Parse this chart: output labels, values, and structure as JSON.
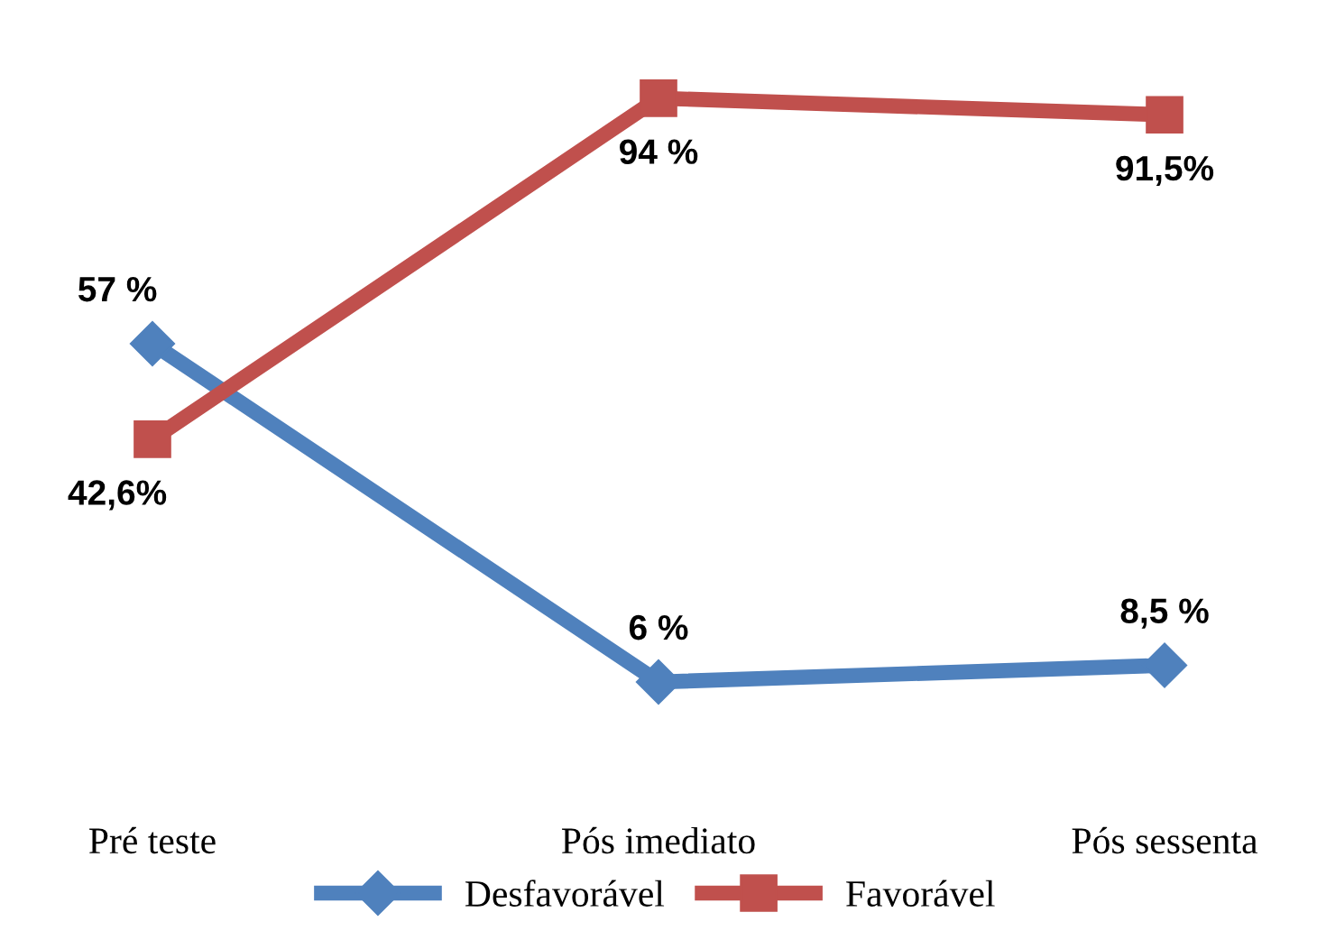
{
  "chart_data": {
    "type": "line",
    "categories": [
      "Pré teste",
      "Pós imediato",
      "Pós sessenta"
    ],
    "series": [
      {
        "name": "Desfavorável",
        "color": "#4f81bd",
        "marker": "diamond",
        "values": [
          57,
          6,
          8.5
        ],
        "value_labels": [
          "57 %",
          "6 %",
          "8,5 %"
        ]
      },
      {
        "name": "Favorável",
        "color": "#c0504d",
        "marker": "square",
        "values": [
          42.6,
          94,
          91.5
        ],
        "value_labels": [
          "42,6%",
          "94 %",
          "91,5%"
        ]
      }
    ],
    "legend": "bottom",
    "grid": false
  }
}
